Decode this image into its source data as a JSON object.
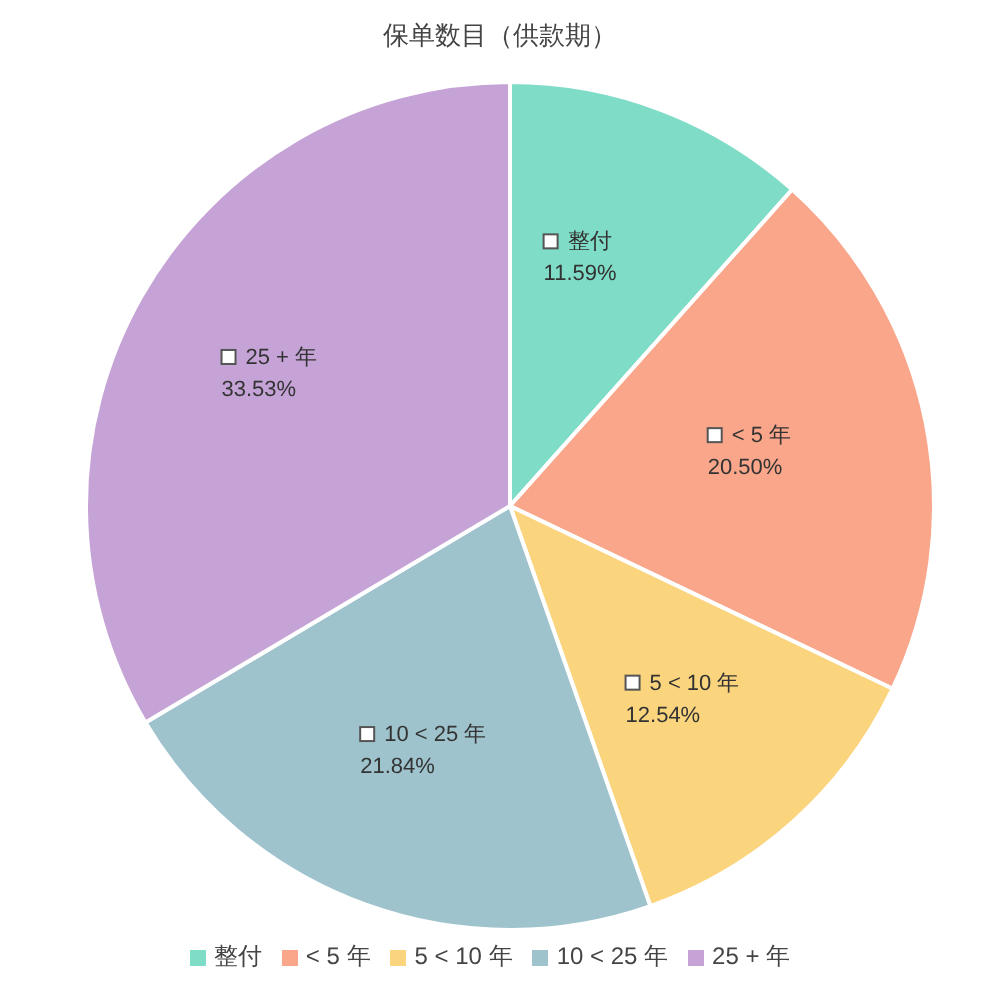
{
  "chart_data": {
    "type": "pie",
    "title": "保单数目（供款期）",
    "categories": [
      "整付",
      "< 5 年",
      "5 < 10 年",
      "10 < 25 年",
      "25 + 年"
    ],
    "values": [
      11.59,
      20.5,
      12.54,
      21.84,
      33.53
    ],
    "value_labels": [
      "11.59%",
      "20.50%",
      "12.54%",
      "21.84%",
      "33.53%"
    ],
    "colors": [
      "#7fdcc6",
      "#f9a68a",
      "#fbd47e",
      "#9fc3cd",
      "#c5a3d6"
    ],
    "legend": "bottom"
  }
}
